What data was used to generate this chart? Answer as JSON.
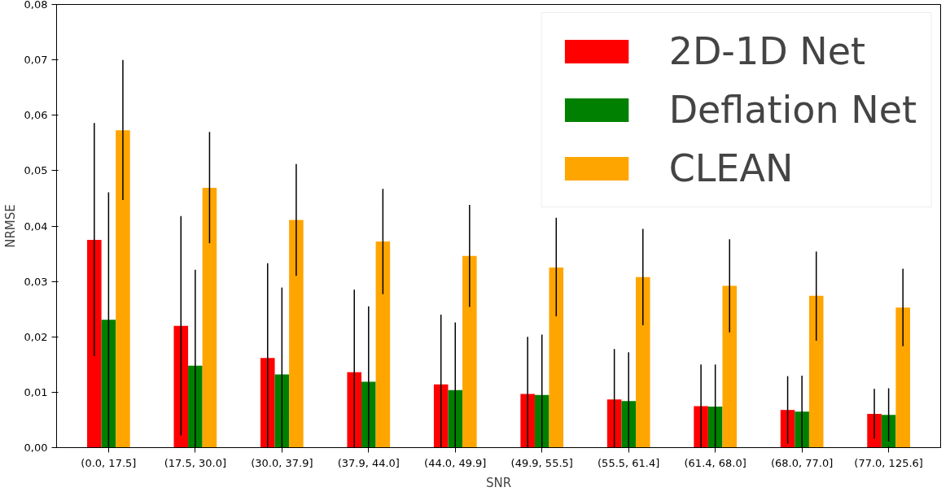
{
  "chart_data": {
    "type": "bar",
    "xlabel": "SNR",
    "ylabel": "NRMSE",
    "categories": [
      "(0.0, 17.5]",
      "(17.5, 30.0]",
      "(30.0, 37.9]",
      "(37.9, 44.0]",
      "(44.0, 49.9]",
      "(49.9, 55.5]",
      "(55.5, 61.4]",
      "(61.4, 68.0]",
      "(68.0, 77.0]",
      "(77.0, 125.6]"
    ],
    "series": [
      {
        "name": "2D-1D Net",
        "color": "#ff0000",
        "values": [
          0.0375,
          0.022,
          0.0162,
          0.0136,
          0.0114,
          0.0097,
          0.0087,
          0.0075,
          0.0068,
          0.0061
        ],
        "errors": [
          [
            0.0165,
            0.0586
          ],
          [
            0.0022,
            0.0418
          ],
          [
            0.0,
            0.0333
          ],
          [
            0.0,
            0.0285
          ],
          [
            0.0,
            0.024
          ],
          [
            0.0,
            0.02
          ],
          [
            0.0,
            0.0178
          ],
          [
            0.0,
            0.015
          ],
          [
            0.0007,
            0.0129
          ],
          [
            0.0016,
            0.0106
          ]
        ]
      },
      {
        "name": "Deflation Net",
        "color": "#008000",
        "values": [
          0.0231,
          0.0148,
          0.0132,
          0.0119,
          0.0104,
          0.0095,
          0.0084,
          0.0074,
          0.0065,
          0.0059
        ],
        "errors": [
          [
            0.0,
            0.0461
          ],
          [
            0.0,
            0.0321
          ],
          [
            0.0,
            0.0289
          ],
          [
            0.0,
            0.0255
          ],
          [
            0.0,
            0.0226
          ],
          [
            0.0,
            0.0204
          ],
          [
            0.0,
            0.0172
          ],
          [
            0.0,
            0.015
          ],
          [
            0.0,
            0.013
          ],
          [
            0.0011,
            0.0107
          ]
        ]
      },
      {
        "name": "CLEAN",
        "color": "#ffa500",
        "values": [
          0.0573,
          0.0469,
          0.0411,
          0.0372,
          0.0346,
          0.0325,
          0.0308,
          0.0292,
          0.0274,
          0.0253
        ],
        "errors": [
          [
            0.0447,
            0.07
          ],
          [
            0.0369,
            0.057
          ],
          [
            0.031,
            0.0512
          ],
          [
            0.0277,
            0.0467
          ],
          [
            0.0254,
            0.0438
          ],
          [
            0.0237,
            0.0415
          ],
          [
            0.0221,
            0.0395
          ],
          [
            0.0208,
            0.0376
          ],
          [
            0.0193,
            0.0354
          ],
          [
            0.0183,
            0.0323
          ]
        ]
      }
    ],
    "ylim": [
      0,
      0.08
    ],
    "yticks": [
      {
        "value": 0,
        "label": "0,00"
      },
      {
        "value": 0.01,
        "label": "0,01"
      },
      {
        "value": 0.02,
        "label": "0,02"
      },
      {
        "value": 0.03,
        "label": "0,03"
      },
      {
        "value": 0.04,
        "label": "0,04"
      },
      {
        "value": 0.05,
        "label": "0,05"
      },
      {
        "value": 0.06,
        "label": "0,06"
      },
      {
        "value": 0.07,
        "label": "0,07"
      },
      {
        "value": 0.08,
        "label": "0,08"
      }
    ],
    "grid": false,
    "legend": "top right"
  }
}
